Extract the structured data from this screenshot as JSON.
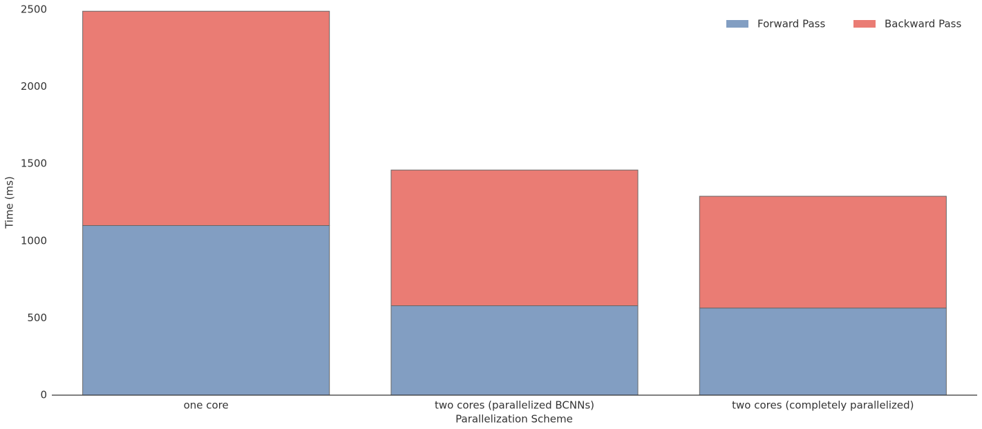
{
  "chart_data": {
    "type": "bar",
    "stacked": true,
    "x_label": "Parallelization Scheme",
    "y_label": "Time (ms)",
    "categories": [
      "one core",
      "two cores (parallelized BCNNs)",
      "two cores (completely parallelized)"
    ],
    "series": [
      {
        "name": "Forward Pass",
        "color": "#829ec2",
        "values": [
          1100,
          580,
          565
        ]
      },
      {
        "name": "Backward Pass",
        "color": "#ea7c74",
        "values": [
          1390,
          880,
          725
        ]
      }
    ],
    "ylim": [
      0,
      2500
    ],
    "yticks": [
      0,
      500,
      1000,
      1500,
      2000,
      2500
    ],
    "legend": "upper-right"
  }
}
